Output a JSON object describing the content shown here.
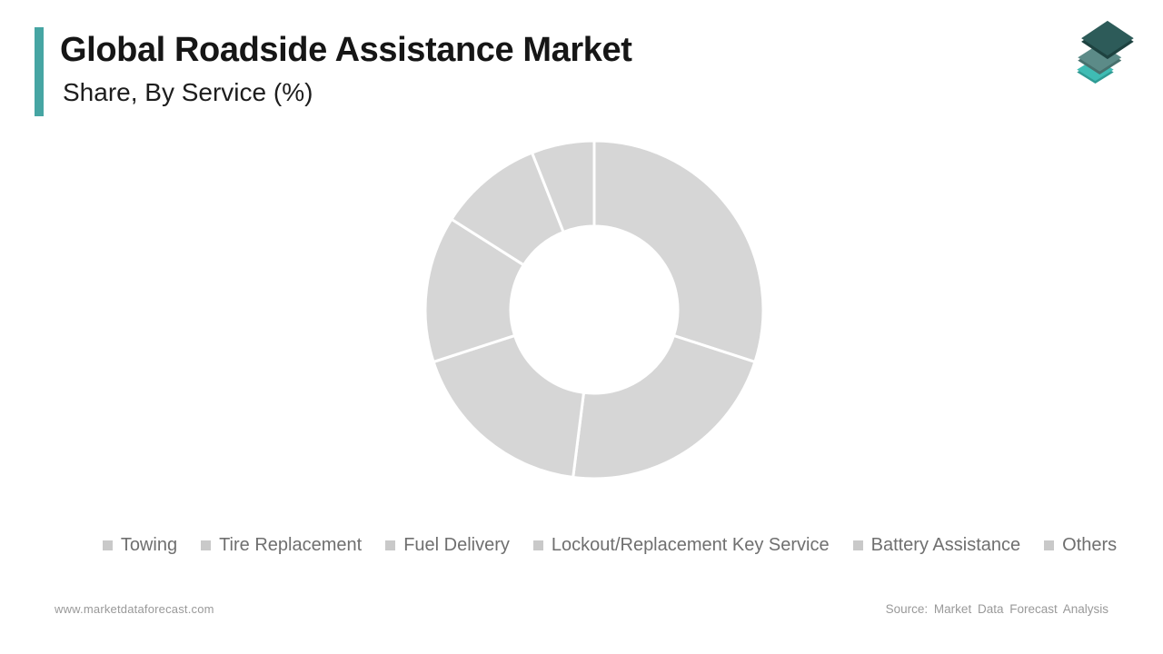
{
  "header": {
    "title": "Global Roadside Assistance Market",
    "subtitle": "Share, By Service (%)",
    "accent_color": "#46A5A3"
  },
  "logo": {
    "name": "Market Data Forecast logo",
    "layers": [
      {
        "face": "#2D5B59",
        "side": "#1E4240"
      },
      {
        "face": "#5C8B88",
        "side": "#47706D"
      },
      {
        "face": "#3FBCB4",
        "side": "#2F9B94"
      }
    ]
  },
  "chart_data": {
    "type": "pie",
    "donut": true,
    "title": "Global Roadside Assistance Market Share, By Service (%)",
    "categories": [
      "Towing",
      "Tire Replacement",
      "Fuel Delivery",
      "Lockout/Replacement Key Service",
      "Battery Assistance",
      "Others"
    ],
    "values": [
      30,
      22,
      18,
      14,
      10,
      6
    ],
    "unit": "%",
    "start_angle_deg": 0,
    "direction": "clockwise",
    "outer_radius_px": 188,
    "inner_radius_px": 93,
    "segment_fill": "#D6D6D6",
    "separator_color": "#FFFFFF",
    "legend_position": "bottom",
    "legend_marker_color": "#C9C9C9",
    "note": "All segments shown in uniform placeholder gray; values estimated from arc angles"
  },
  "footer": {
    "website": "www.marketdataforecast.com",
    "source": "Source: Market Data Forecast Analysis"
  }
}
